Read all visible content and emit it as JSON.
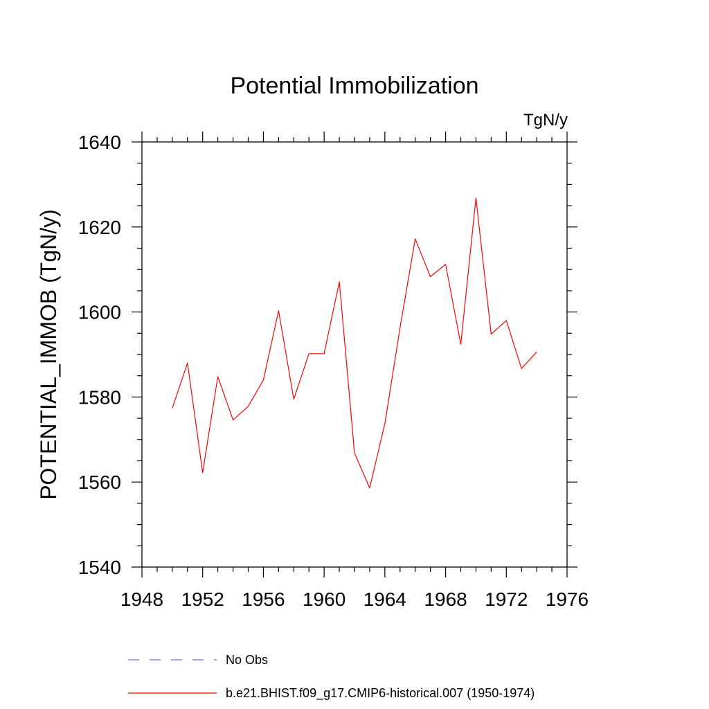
{
  "chart_data": {
    "type": "line",
    "title": "Potential Immobilization",
    "units_label": "TgN/y",
    "ylabel": "POTENTIAL_IMMOB  (TgN/y)",
    "xlabel": "",
    "xlim": [
      1948,
      1976
    ],
    "ylim": [
      1540,
      1640
    ],
    "x_ticks": [
      1948,
      1952,
      1956,
      1960,
      1964,
      1968,
      1972,
      1976
    ],
    "y_ticks": [
      1540,
      1560,
      1580,
      1600,
      1620,
      1640
    ],
    "grid": false,
    "series": [
      {
        "name": "b.e21.BHIST.f09_g17.CMIP6-historical.007 (1950-1974)",
        "color": "#ff0000",
        "style": "solid",
        "x": [
          1950,
          1951,
          1952,
          1953,
          1954,
          1955,
          1956,
          1957,
          1958,
          1959,
          1960,
          1961,
          1962,
          1963,
          1964,
          1965,
          1966,
          1967,
          1968,
          1969,
          1970,
          1971,
          1972,
          1973,
          1974
        ],
        "y": [
          1577.4,
          1588.0,
          1562.2,
          1584.8,
          1574.6,
          1577.8,
          1584.0,
          1600.3,
          1579.5,
          1590.2,
          1590.2,
          1607.1,
          1566.8,
          1558.6,
          1573.8,
          1596.3,
          1617.2,
          1608.3,
          1611.2,
          1592.4,
          1626.8,
          1594.8,
          1598.0,
          1586.7,
          1590.6
        ]
      }
    ],
    "legend": {
      "placement": "bottom",
      "entries": [
        {
          "label": "No Obs",
          "color": "#7b6fd6",
          "style": "dashed"
        },
        {
          "label": "b.e21.BHIST.f09_g17.CMIP6-historical.007 (1950-1974)",
          "color": "#ff0000",
          "style": "solid"
        }
      ]
    }
  }
}
